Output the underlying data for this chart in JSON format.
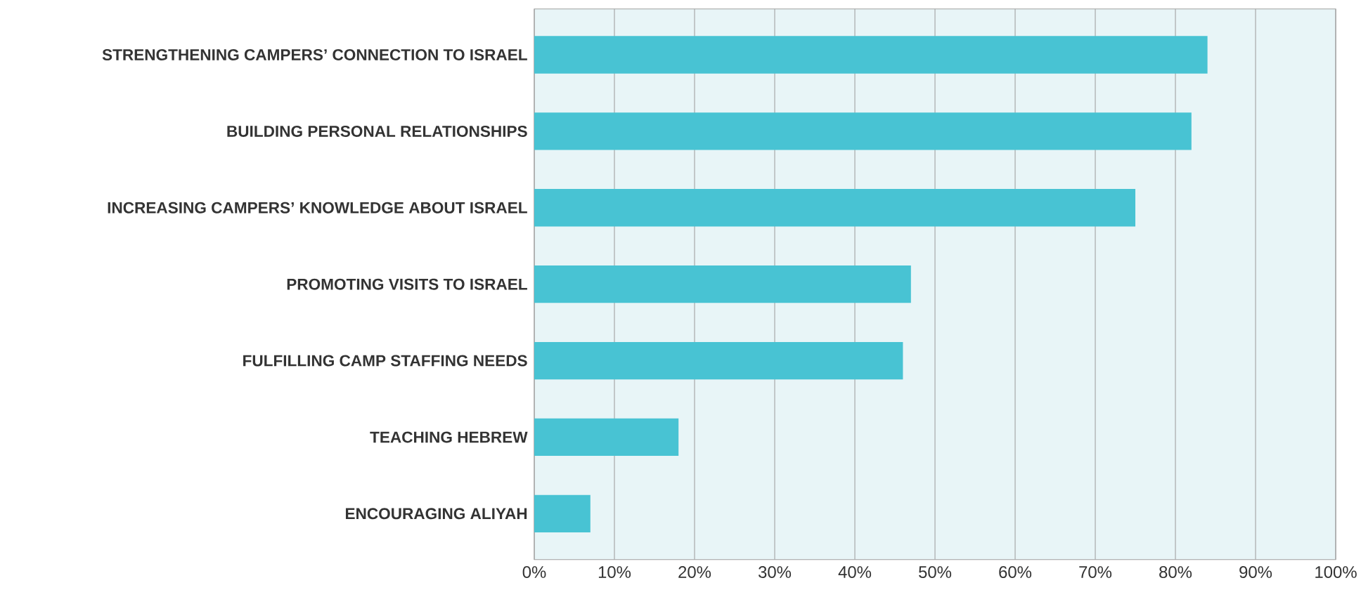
{
  "chart_data": {
    "type": "bar",
    "orientation": "horizontal",
    "categories": [
      "STRENGTHENING CAMPERS’ CONNECTION TO ISRAEL",
      "BUILDING PERSONAL RELATIONSHIPS",
      "INCREASING CAMPERS’ KNOWLEDGE ABOUT ISRAEL",
      "PROMOTING VISITS TO ISRAEL",
      "FULFILLING CAMP STAFFING NEEDS",
      "TEACHING HEBREW",
      "ENCOURAGING ALIYAH"
    ],
    "values": [
      84,
      82,
      75,
      47,
      46,
      18,
      7
    ],
    "color": "#48c3d3",
    "xlim": [
      0,
      100
    ],
    "xticks": [
      {
        "value": 0,
        "label": "0%"
      },
      {
        "value": 10,
        "label": "10%"
      },
      {
        "value": 20,
        "label": "20%"
      },
      {
        "value": 30,
        "label": "30%"
      },
      {
        "value": 40,
        "label": "40%"
      },
      {
        "value": 50,
        "label": "50%"
      },
      {
        "value": 60,
        "label": "60%"
      },
      {
        "value": 70,
        "label": "70%"
      },
      {
        "value": 80,
        "label": "80%"
      },
      {
        "value": 90,
        "label": "90%"
      },
      {
        "value": 100,
        "label": "100%"
      }
    ],
    "grid": "x"
  }
}
